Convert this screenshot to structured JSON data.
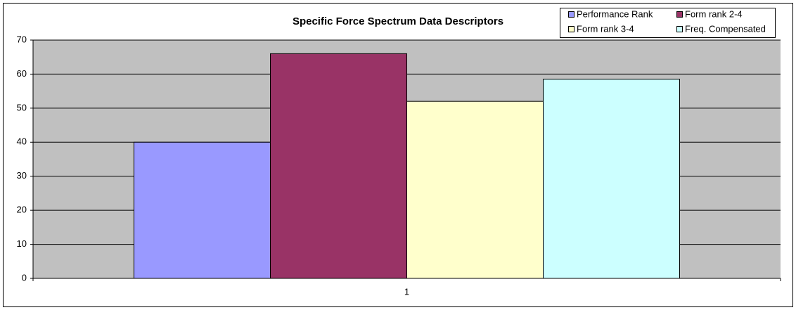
{
  "chart_data": {
    "type": "bar",
    "title": "Specific Force Spectrum Data Descriptors",
    "categories": [
      "1"
    ],
    "series": [
      {
        "name": "Performance Rank",
        "color": "#9999ff",
        "values": [
          40
        ]
      },
      {
        "name": "Form rank 2-4",
        "color": "#993366",
        "values": [
          66
        ]
      },
      {
        "name": "Form rank 3-4",
        "color": "#ffffcc",
        "values": [
          52
        ]
      },
      {
        "name": "Freq. Compensated",
        "color": "#ccffff",
        "values": [
          58.5
        ]
      }
    ],
    "ylim": [
      0,
      70
    ],
    "yticks": [
      0,
      10,
      20,
      30,
      40,
      50,
      60,
      70
    ],
    "grid": true,
    "legend": "top-right",
    "plot_background": "#c0c0c0"
  }
}
